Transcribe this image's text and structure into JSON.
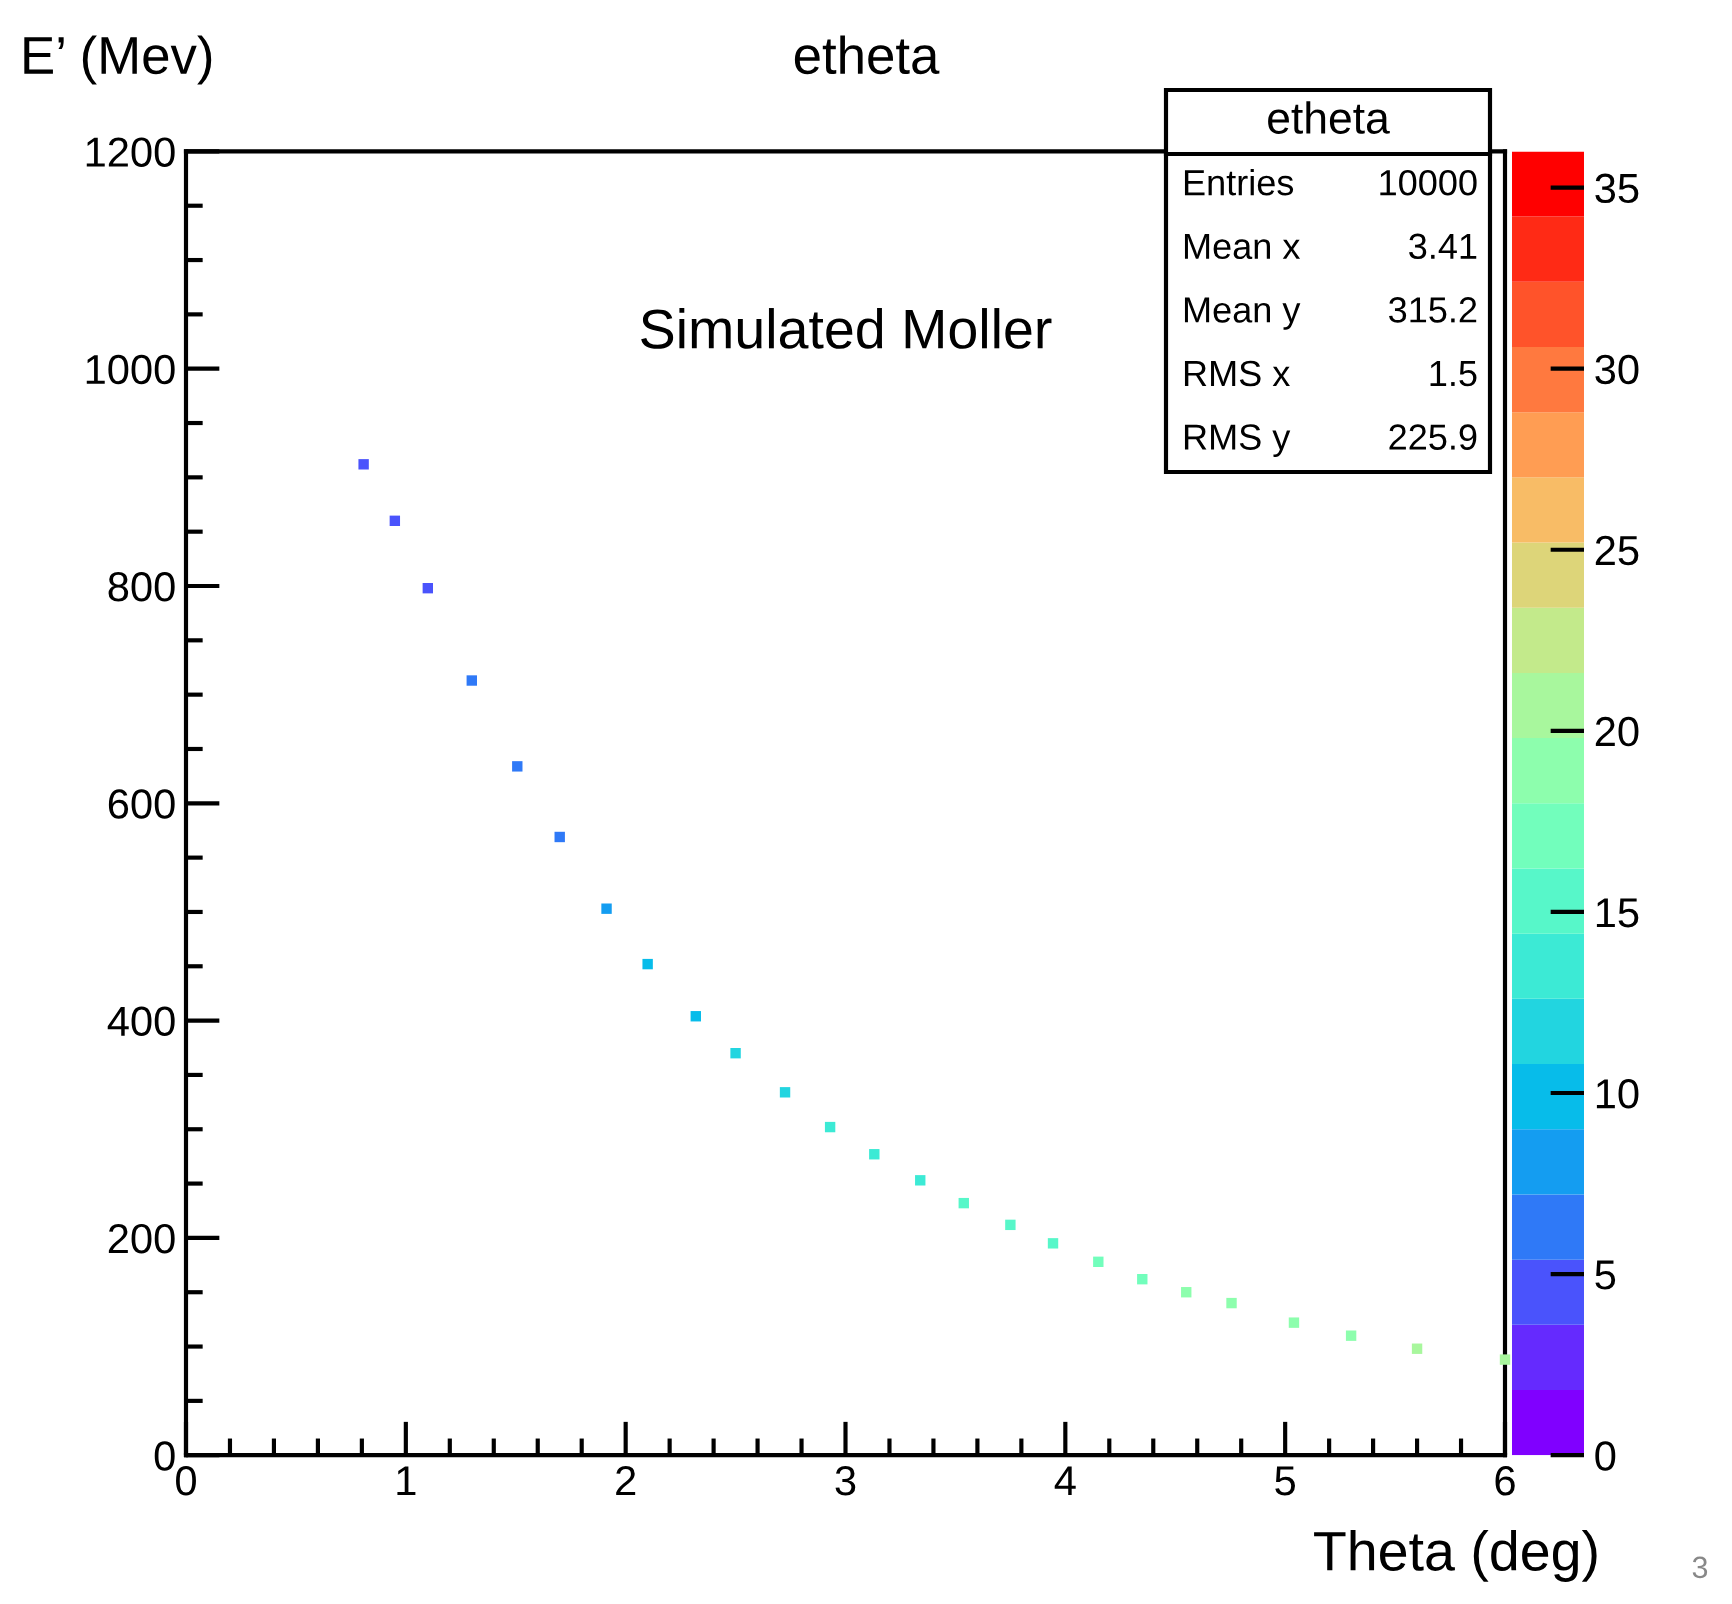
{
  "chart_data": {
    "type": "scatter",
    "title": "etheta",
    "xlabel": "Theta (deg)",
    "ylabel": "E’ (Mev)",
    "xlim": [
      0,
      6
    ],
    "xticks": [
      0,
      1,
      2,
      3,
      4,
      5,
      6
    ],
    "ylim": [
      0,
      1200
    ],
    "yticks": [
      0,
      200,
      400,
      600,
      800,
      1000,
      1200
    ],
    "marker": "square",
    "series": [
      {
        "x": [
          0.808,
          0.95,
          1.1,
          1.3,
          1.507,
          1.7,
          1.913,
          2.1,
          2.319,
          2.5,
          2.725,
          2.93,
          3.131,
          3.34,
          3.538,
          3.75,
          3.944,
          4.15,
          4.35,
          4.55,
          4.756,
          5.04,
          5.3,
          5.6,
          6.0
        ],
        "values": [
          912,
          860,
          798,
          713,
          634,
          569,
          503,
          452,
          404,
          370,
          334,
          302,
          277,
          253,
          232,
          212,
          195,
          178,
          162,
          150,
          140,
          122,
          110,
          98,
          88
        ],
        "cvalues": [
          4,
          5,
          5,
          6,
          6,
          7,
          8,
          9,
          10,
          11,
          12,
          13,
          14,
          14,
          15,
          16,
          16,
          17,
          17,
          18,
          18,
          19,
          19,
          20,
          20
        ]
      }
    ],
    "clim": [
      0,
      36
    ],
    "cticks": [
      0,
      5,
      10,
      15,
      20,
      25,
      30,
      35
    ],
    "annotations": [
      "Simulated Moller",
      "etheta",
      "Entries",
      "10000",
      "Mean x",
      "3.41",
      "Mean y",
      "315.2",
      "RMS x",
      "1.5",
      "RMS y",
      "225.9",
      "3"
    ]
  }
}
